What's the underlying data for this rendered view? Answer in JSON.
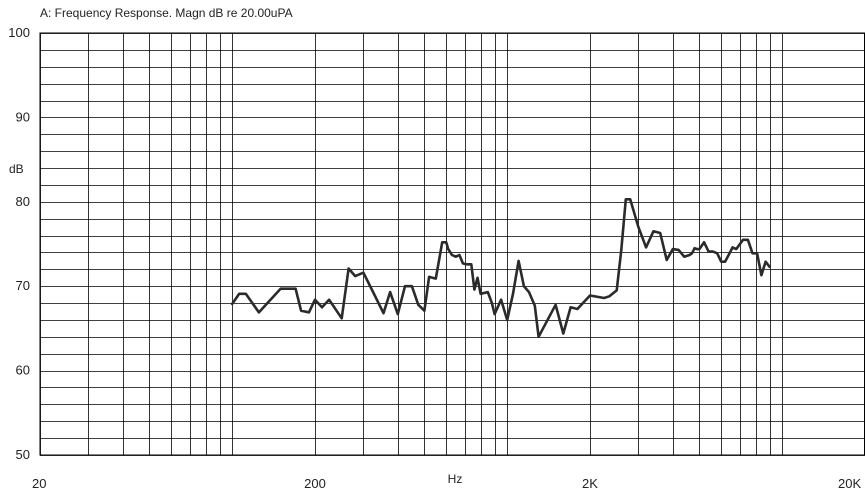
{
  "chart_data": {
    "type": "line",
    "title": "A: Frequency Response. Magn dB re 20.00uPA",
    "xlabel": "Hz",
    "ylabel": "dB",
    "xscale": "log",
    "xlim": [
      20,
      20000
    ],
    "ylim": [
      50,
      100
    ],
    "grid": true,
    "colors": {
      "line": "#2b2b2b",
      "grid": "#000000",
      "background": "#ffffff"
    },
    "x_ticks": [
      {
        "value": 20,
        "label": "20"
      },
      {
        "value": 200,
        "label": "200"
      },
      {
        "value": 2000,
        "label": "2K"
      },
      {
        "value": 20000,
        "label": "20K"
      }
    ],
    "y_ticks": [
      {
        "value": 100,
        "label": "100"
      },
      {
        "value": 90,
        "label": "90"
      },
      {
        "value": 80,
        "label": "80"
      },
      {
        "value": 70,
        "label": "70"
      },
      {
        "value": 60,
        "label": "60"
      },
      {
        "value": 50,
        "label": "50"
      }
    ],
    "series": [
      {
        "x": [
          100,
          106,
          112,
          125,
          150,
          170,
          178,
          190,
          200,
          212,
          225,
          250,
          265,
          280,
          300,
          330,
          355,
          375,
          400,
          425,
          450,
          475,
          500,
          520,
          550,
          580,
          600,
          610,
          630,
          650,
          670,
          690,
          710,
          740,
          760,
          780,
          800,
          850,
          880,
          900,
          950,
          1000,
          1050,
          1100,
          1150,
          1200,
          1260,
          1300,
          1500,
          1600,
          1700,
          1800,
          2000,
          2250,
          2350,
          2500,
          2600,
          2700,
          2800,
          3000,
          3200,
          3400,
          3600,
          3800,
          4000,
          4200,
          4400,
          4600,
          4700,
          4800,
          4900,
          5000,
          5200,
          5400,
          5600,
          5800,
          6000,
          6200,
          6600,
          6800,
          7200,
          7500,
          7800,
          8100,
          8400,
          8700,
          9000
        ],
        "y": [
          67.9,
          69.1,
          69.1,
          66.9,
          69.7,
          69.7,
          67.1,
          66.9,
          68.4,
          67.5,
          68.4,
          66.2,
          72.1,
          71.2,
          71.6,
          68.9,
          66.8,
          69.3,
          66.7,
          70.0,
          70.0,
          67.8,
          67.1,
          71.1,
          70.9,
          75.2,
          75.2,
          74.4,
          73.7,
          73.5,
          73.7,
          72.7,
          72.6,
          72.6,
          69.6,
          71.0,
          69.1,
          69.3,
          68.0,
          66.7,
          68.4,
          66.0,
          69.1,
          73.0,
          70.0,
          69.3,
          67.7,
          64.0,
          67.8,
          64.4,
          67.5,
          67.3,
          68.9,
          68.6,
          68.8,
          69.5,
          74.3,
          80.3,
          80.3,
          77.0,
          74.6,
          76.5,
          76.3,
          73.1,
          74.4,
          74.3,
          73.5,
          73.7,
          73.9,
          74.5,
          74.4,
          74.4,
          75.2,
          74.1,
          74.1,
          73.9,
          72.9,
          72.9,
          74.6,
          74.4,
          75.5,
          75.5,
          73.9,
          73.9,
          71.3,
          72.9,
          72.3
        ]
      }
    ]
  }
}
